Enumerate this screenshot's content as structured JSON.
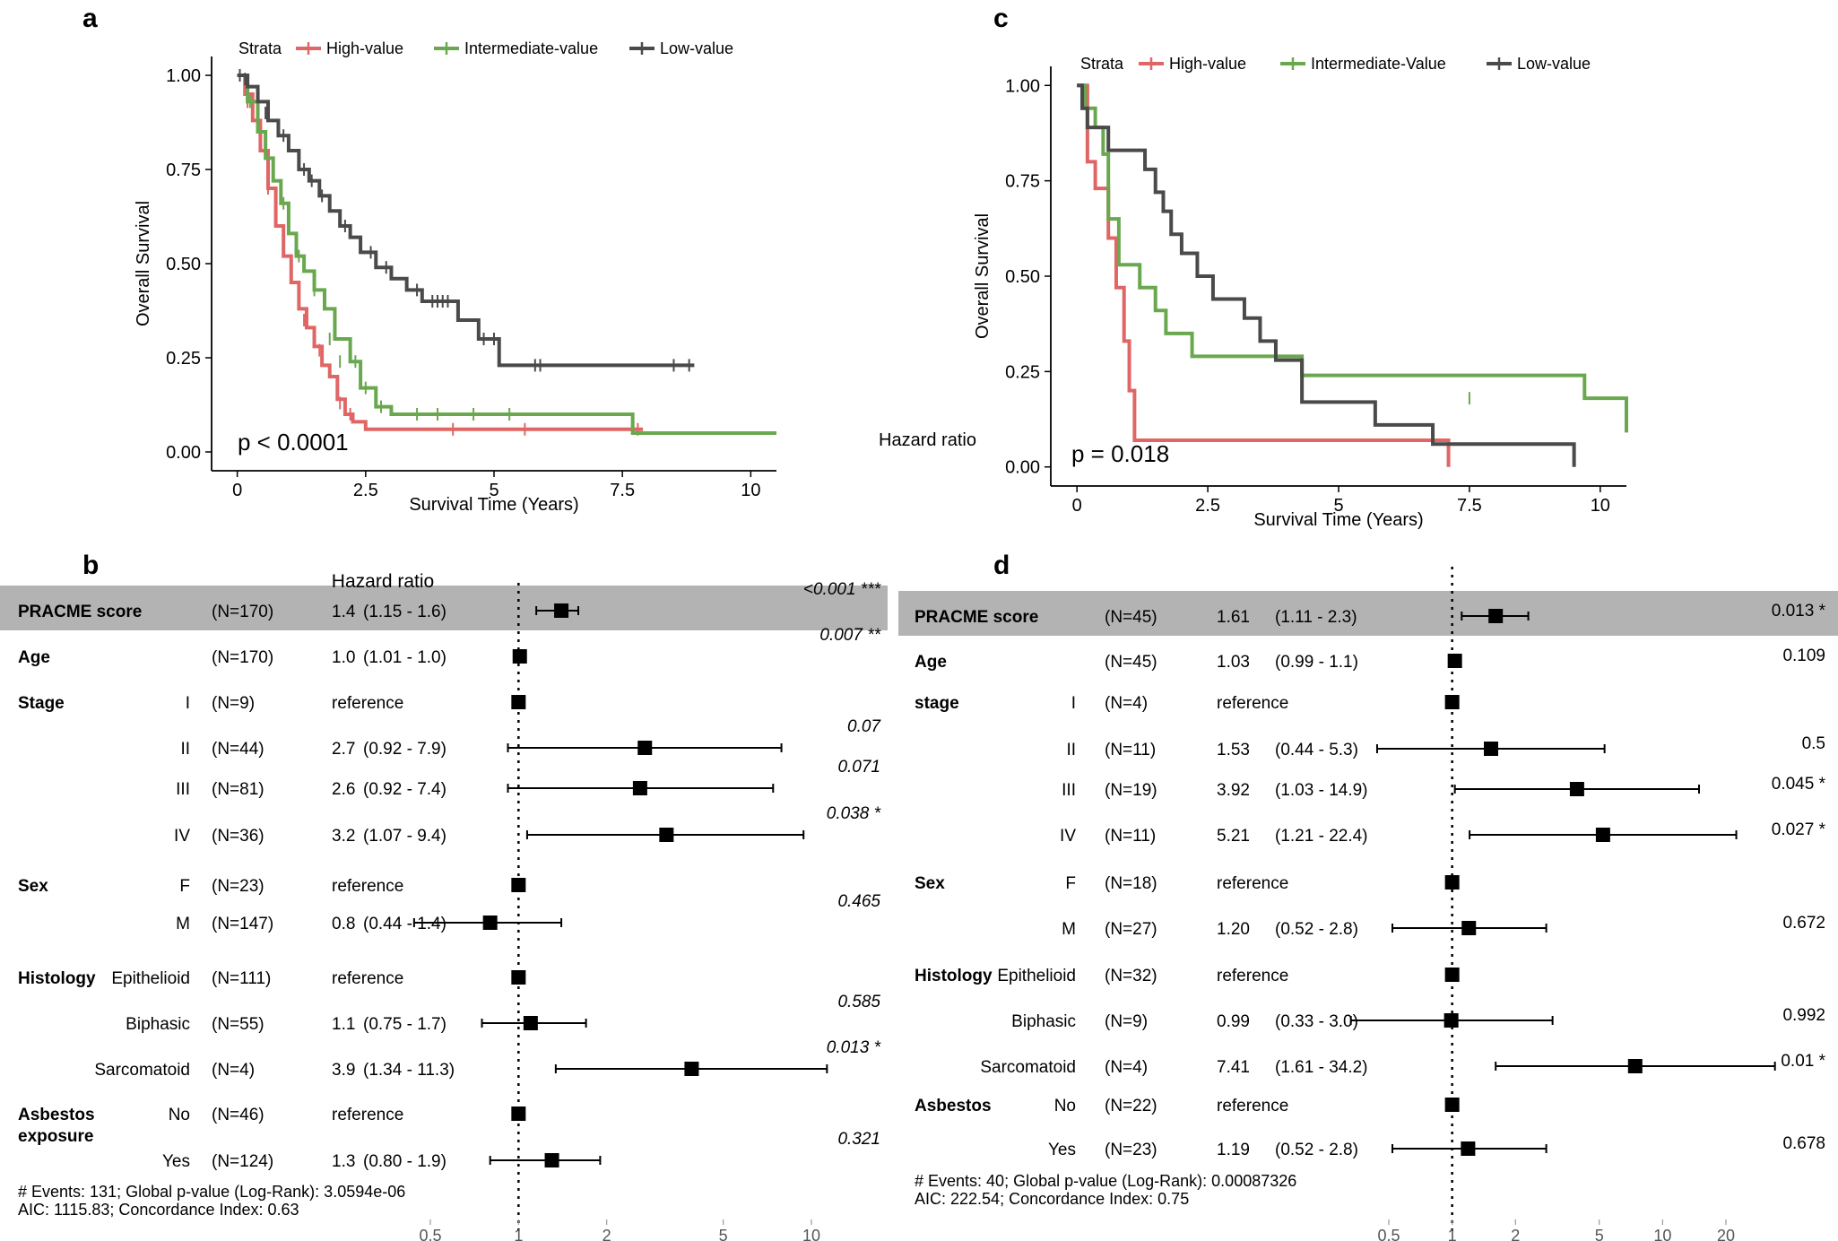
{
  "chart_data": [
    {
      "panel": "a",
      "type": "line",
      "subtype": "kaplan-meier",
      "legend_title": "Strata",
      "legend_position": "top",
      "xlabel": "Survival Time (Years)",
      "ylabel": "Overall Survival",
      "xlim": [
        -0.5,
        10.5
      ],
      "ylim": [
        -0.05,
        1.05
      ],
      "xticks": [
        0,
        2.5,
        5,
        7.5,
        10
      ],
      "xtick_labels": [
        "0",
        "2.5",
        "5",
        "7.5",
        "10"
      ],
      "yticks": [
        0,
        0.25,
        0.5,
        0.75,
        1
      ],
      "ytick_labels": [
        "0.00",
        "0.25",
        "0.50",
        "0.75",
        "1.00"
      ],
      "pvalue": "p < 0.0001",
      "series": [
        {
          "name": "High-value",
          "color": "#e06666",
          "x": [
            0,
            0.15,
            0.3,
            0.45,
            0.6,
            0.75,
            0.9,
            1.05,
            1.2,
            1.35,
            1.5,
            1.65,
            1.8,
            1.95,
            2.1,
            2.25,
            2.5,
            2.7,
            7.9
          ],
          "y": [
            1,
            0.95,
            0.88,
            0.8,
            0.7,
            0.6,
            0.52,
            0.45,
            0.38,
            0.33,
            0.28,
            0.23,
            0.2,
            0.14,
            0.1,
            0.08,
            0.06,
            0.06,
            0.06
          ],
          "censors_x": [
            0.2,
            0.6,
            1.3,
            1.6,
            2.0,
            2.2,
            4.2,
            5.6,
            7.8
          ],
          "censors_y": [
            0.93,
            0.7,
            0.35,
            0.27,
            0.13,
            0.1,
            0.06,
            0.06,
            0.06
          ]
        },
        {
          "name": "Intermediate-value",
          "color": "#6aa84f",
          "x": [
            0,
            0.2,
            0.4,
            0.55,
            0.7,
            0.85,
            1.0,
            1.15,
            1.3,
            1.5,
            1.7,
            1.9,
            2.2,
            2.4,
            2.7,
            3.0,
            7.7,
            10.5
          ],
          "y": [
            1,
            0.93,
            0.85,
            0.78,
            0.72,
            0.66,
            0.58,
            0.52,
            0.48,
            0.43,
            0.38,
            0.3,
            0.24,
            0.17,
            0.12,
            0.1,
            0.05,
            0.05
          ],
          "censors_x": [
            0.25,
            0.9,
            1.2,
            1.5,
            1.8,
            2.0,
            2.3,
            2.5,
            2.8,
            3.5,
            3.9,
            4.6,
            5.3
          ],
          "censors_y": [
            0.93,
            0.66,
            0.52,
            0.43,
            0.3,
            0.24,
            0.24,
            0.17,
            0.12,
            0.1,
            0.1,
            0.1,
            0.1
          ]
        },
        {
          "name": "Low-value",
          "color": "#4a4a4a",
          "x": [
            0,
            0.2,
            0.4,
            0.6,
            0.8,
            1.0,
            1.2,
            1.4,
            1.6,
            1.8,
            2.0,
            2.2,
            2.4,
            2.7,
            3.0,
            3.3,
            3.6,
            4.3,
            4.7,
            5.1,
            8.9
          ],
          "y": [
            1,
            0.97,
            0.93,
            0.88,
            0.84,
            0.8,
            0.75,
            0.72,
            0.68,
            0.64,
            0.6,
            0.57,
            0.53,
            0.49,
            0.46,
            0.43,
            0.4,
            0.35,
            0.3,
            0.23,
            0.23
          ],
          "censors_x": [
            0.05,
            0.15,
            0.55,
            0.9,
            1.3,
            1.45,
            1.65,
            2.1,
            2.6,
            2.9,
            3.5,
            3.8,
            3.9,
            4.0,
            4.1,
            4.8,
            5.0,
            5.8,
            5.9,
            8.5,
            8.8
          ],
          "censors_y": [
            1,
            0.99,
            0.9,
            0.84,
            0.75,
            0.72,
            0.68,
            0.6,
            0.53,
            0.49,
            0.43,
            0.4,
            0.4,
            0.4,
            0.4,
            0.3,
            0.3,
            0.23,
            0.23,
            0.23,
            0.23
          ]
        }
      ]
    },
    {
      "panel": "c",
      "type": "line",
      "subtype": "kaplan-meier",
      "legend_title": "Strata",
      "legend_position": "top",
      "xlabel": "Survival Time (Years)",
      "ylabel": "Overall Survival",
      "xlim": [
        -0.5,
        10.5
      ],
      "ylim": [
        -0.05,
        1.05
      ],
      "xticks": [
        0,
        2.5,
        5,
        7.5,
        10
      ],
      "xtick_labels": [
        "0",
        "2.5",
        "5",
        "7.5",
        "10"
      ],
      "yticks": [
        0,
        0.25,
        0.5,
        0.75,
        1
      ],
      "ytick_labels": [
        "0.00",
        "0.25",
        "0.50",
        "0.75",
        "1.00"
      ],
      "pvalue": "p = 0.018",
      "series": [
        {
          "name": "High-value",
          "color": "#e06666",
          "x": [
            0,
            0.2,
            0.35,
            0.6,
            0.75,
            0.9,
            1.0,
            1.1,
            7.1
          ],
          "y": [
            1,
            0.8,
            0.73,
            0.6,
            0.47,
            0.33,
            0.2,
            0.07,
            0.0
          ],
          "censors_x": [],
          "censors_y": []
        },
        {
          "name": "Intermediate-Value",
          "color": "#6aa84f",
          "x": [
            0,
            0.15,
            0.35,
            0.5,
            0.6,
            0.8,
            1.2,
            1.5,
            1.7,
            2.2,
            4.3,
            9.7,
            10.5
          ],
          "y": [
            1,
            0.94,
            0.89,
            0.82,
            0.65,
            0.53,
            0.47,
            0.41,
            0.35,
            0.29,
            0.24,
            0.18,
            0.09
          ],
          "censors_x": [
            7.5
          ],
          "censors_y": [
            0.18
          ]
        },
        {
          "name": "Low-value",
          "color": "#4a4a4a",
          "x": [
            0,
            0.1,
            0.2,
            0.6,
            1.3,
            1.5,
            1.65,
            1.8,
            2.0,
            2.3,
            2.6,
            3.2,
            3.5,
            3.8,
            4.3,
            5.7,
            6.8,
            9.5
          ],
          "y": [
            1,
            0.94,
            0.89,
            0.83,
            0.78,
            0.72,
            0.67,
            0.61,
            0.56,
            0.5,
            0.44,
            0.39,
            0.33,
            0.28,
            0.17,
            0.11,
            0.06,
            0.0
          ],
          "censors_x": [],
          "censors_y": []
        }
      ]
    },
    {
      "panel": "b",
      "type": "forest",
      "title": "Hazard ratio",
      "scale": "log",
      "xticks": [
        0.5,
        1,
        2,
        5,
        10
      ],
      "xtick_labels": [
        "0.5",
        "1",
        "2",
        "5",
        "10"
      ],
      "reference_value": 1,
      "rows": [
        {
          "label": "PRACME score",
          "sub": "",
          "n": "(N=170)",
          "est_text": "1.4",
          "ci_text": "(1.15 - 1.6)",
          "p_text": "<0.001 ***",
          "hr": 1.4,
          "lo": 1.15,
          "hi": 1.6,
          "highlight": true
        },
        {
          "label": "Age",
          "sub": "",
          "n": "(N=170)",
          "est_text": "1.0",
          "ci_text": "(1.01 - 1.0)",
          "p_text": "0.007 **",
          "hr": 1.01,
          "lo": 1.01,
          "hi": 1.01
        },
        {
          "label": "Stage",
          "sub": "I",
          "n": "(N=9)",
          "est_text": "reference",
          "ci_text": "",
          "p_text": "",
          "hr": 1,
          "ref": true
        },
        {
          "label": "",
          "sub": "II",
          "n": "(N=44)",
          "est_text": "2.7",
          "ci_text": "(0.92 - 7.9)",
          "p_text": "0.07",
          "hr": 2.7,
          "lo": 0.92,
          "hi": 7.9
        },
        {
          "label": "",
          "sub": "III",
          "n": "(N=81)",
          "est_text": "2.6",
          "ci_text": "(0.92 - 7.4)",
          "p_text": "0.071",
          "hr": 2.6,
          "lo": 0.92,
          "hi": 7.4
        },
        {
          "label": "",
          "sub": "IV",
          "n": "(N=36)",
          "est_text": "3.2",
          "ci_text": "(1.07 - 9.4)",
          "p_text": "0.038 *",
          "hr": 3.2,
          "lo": 1.07,
          "hi": 9.4
        },
        {
          "label": "Sex",
          "sub": "F",
          "n": "(N=23)",
          "est_text": "reference",
          "ci_text": "",
          "p_text": "",
          "hr": 1,
          "ref": true
        },
        {
          "label": "",
          "sub": "M",
          "n": "(N=147)",
          "est_text": "0.8",
          "ci_text": "(0.44 - 1.4)",
          "p_text": "0.465",
          "hr": 0.8,
          "lo": 0.44,
          "hi": 1.4
        },
        {
          "label": "Histology",
          "sub": "Epithelioid",
          "n": "(N=111)",
          "est_text": "reference",
          "ci_text": "",
          "p_text": "",
          "hr": 1,
          "ref": true
        },
        {
          "label": "",
          "sub": "Biphasic",
          "n": "(N=55)",
          "est_text": "1.1",
          "ci_text": "(0.75 - 1.7)",
          "p_text": "0.585",
          "hr": 1.1,
          "lo": 0.75,
          "hi": 1.7
        },
        {
          "label": "",
          "sub": "Sarcomatoid",
          "n": "(N=4)",
          "est_text": "3.9",
          "ci_text": "(1.34 - 11.3)",
          "p_text": "0.013 *",
          "hr": 3.9,
          "lo": 1.34,
          "hi": 11.3
        },
        {
          "label": "Asbestos",
          "label2": "exposure",
          "sub": "No",
          "n": "(N=46)",
          "est_text": "reference",
          "ci_text": "",
          "p_text": "",
          "hr": 1,
          "ref": true
        },
        {
          "label": "",
          "sub": "Yes",
          "n": "(N=124)",
          "est_text": "1.3",
          "ci_text": "(0.80 - 1.9)",
          "p_text": "0.321",
          "hr": 1.3,
          "lo": 0.8,
          "hi": 1.9
        }
      ],
      "footer_line1": "# Events: 131; Global p-value (Log-Rank): 3.0594e-06",
      "footer_line2": "AIC: 1115.83; Concordance Index: 0.63"
    },
    {
      "panel": "d",
      "type": "forest",
      "title": "Hazard ratio",
      "scale": "log",
      "xticks": [
        0.5,
        1,
        2,
        5,
        10,
        20
      ],
      "xtick_labels": [
        "0.5",
        "1",
        "2",
        "5",
        "10",
        "20"
      ],
      "reference_value": 1,
      "rows": [
        {
          "label": "PRACME score",
          "sub": "",
          "n": "(N=45)",
          "est_text": "1.61",
          "ci_text": "(1.11 - 2.3)",
          "p_text": "0.013 *",
          "hr": 1.61,
          "lo": 1.11,
          "hi": 2.3,
          "highlight": true
        },
        {
          "label": "Age",
          "sub": "",
          "n": "(N=45)",
          "est_text": "1.03",
          "ci_text": "(0.99 - 1.1)",
          "p_text": "0.109",
          "hr": 1.03,
          "lo": 1.03,
          "hi": 1.03
        },
        {
          "label": "stage",
          "sub": "I",
          "n": "(N=4)",
          "est_text": "reference",
          "ci_text": "",
          "p_text": "",
          "hr": 1,
          "ref": true
        },
        {
          "label": "",
          "sub": "II",
          "n": "(N=11)",
          "est_text": "1.53",
          "ci_text": "(0.44 - 5.3)",
          "p_text": "0.5",
          "hr": 1.53,
          "lo": 0.44,
          "hi": 5.3
        },
        {
          "label": "",
          "sub": "III",
          "n": "(N=19)",
          "est_text": "3.92",
          "ci_text": "(1.03 - 14.9)",
          "p_text": "0.045 *",
          "hr": 3.92,
          "lo": 1.03,
          "hi": 14.9
        },
        {
          "label": "",
          "sub": "IV",
          "n": "(N=11)",
          "est_text": "5.21",
          "ci_text": "(1.21 - 22.4)",
          "p_text": "0.027 *",
          "hr": 5.21,
          "lo": 1.21,
          "hi": 22.4
        },
        {
          "label": "Sex",
          "sub": "F",
          "n": "(N=18)",
          "est_text": "reference",
          "ci_text": "",
          "p_text": "",
          "hr": 1,
          "ref": true
        },
        {
          "label": "",
          "sub": "M",
          "n": "(N=27)",
          "est_text": "1.20",
          "ci_text": "(0.52 - 2.8)",
          "p_text": "0.672",
          "hr": 1.2,
          "lo": 0.52,
          "hi": 2.8
        },
        {
          "label": "Histology",
          "sub": "Epithelioid",
          "n": "(N=32)",
          "est_text": "reference",
          "ci_text": "",
          "p_text": "",
          "hr": 1,
          "ref": true
        },
        {
          "label": "",
          "sub": "Biphasic",
          "n": "(N=9)",
          "est_text": "0.99",
          "ci_text": "(0.33 - 3.0)",
          "p_text": "0.992",
          "hr": 0.99,
          "lo": 0.33,
          "hi": 3.0
        },
        {
          "label": "",
          "sub": "Sarcomatoid",
          "n": "(N=4)",
          "est_text": "7.41",
          "ci_text": "(1.61 - 34.2)",
          "p_text": "0.01 *",
          "hr": 7.41,
          "lo": 1.61,
          "hi": 34.2
        },
        {
          "label": "Asbestos",
          "sub": "No",
          "n": "(N=22)",
          "est_text": "reference",
          "ci_text": "",
          "p_text": "",
          "hr": 1,
          "ref": true
        },
        {
          "label": "",
          "sub": "Yes",
          "n": "(N=23)",
          "est_text": "1.19",
          "ci_text": "(0.52 - 2.8)",
          "p_text": "0.678",
          "hr": 1.19,
          "lo": 0.52,
          "hi": 2.8
        }
      ],
      "footer_line1": "# Events: 40; Global p-value (Log-Rank): 0.00087326",
      "footer_line2": "AIC: 222.54; Concordance Index: 0.75"
    }
  ],
  "panel_labels": [
    "a",
    "b",
    "c",
    "d"
  ],
  "extra_text": {
    "stray_label_c": "Hazard ratio"
  }
}
